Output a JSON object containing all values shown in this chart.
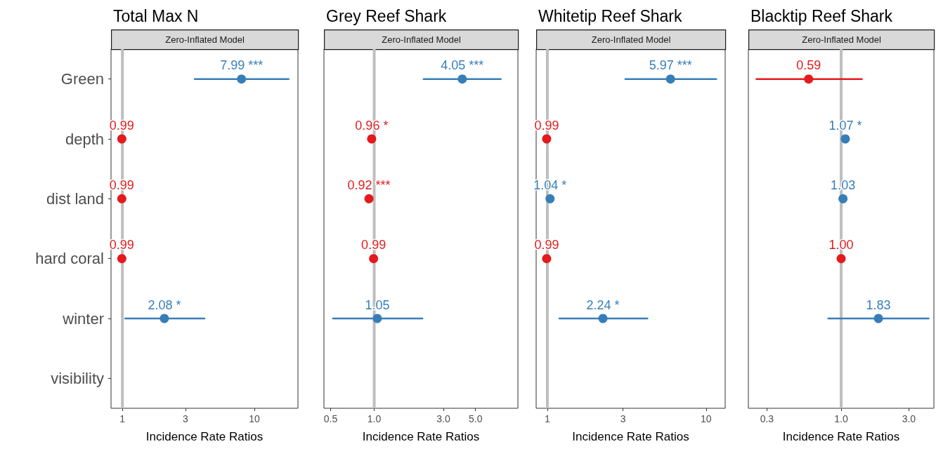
{
  "chart_data": [
    {
      "type": "scatter",
      "orientation": "horizontal",
      "title": "Total Max N",
      "subtitle": "Zero-Inflated Model",
      "xlabel": "Incidence Rate Ratios",
      "categories": [
        "Green",
        "depth",
        "dist land",
        "hard coral",
        "winter",
        "visibility"
      ],
      "values": [
        7.99,
        0.99,
        0.99,
        0.99,
        2.08,
        null
      ],
      "colors": [
        "#377eb8",
        "#e41a1c",
        "#e41a1c",
        "#e41a1c",
        "#377eb8",
        null
      ],
      "errors": [
        [
          3.53,
          18.2
        ],
        null,
        null,
        null,
        [
          1.05,
          4.19
        ],
        null
      ],
      "value_labels": [
        "7.99 ***",
        "0.99",
        "0.99",
        "0.99",
        "2.08 *",
        null
      ],
      "xlim": [
        0.82,
        21.4
      ],
      "xticks": [
        1,
        3,
        10
      ],
      "log": "x",
      "marker": "circle",
      "grid": false,
      "ref_lines": [
        {
          "axis": "x",
          "value": 1,
          "color": "#bebebe"
        }
      ]
    },
    {
      "type": "scatter",
      "orientation": "horizontal",
      "title": "Grey Reef Shark",
      "subtitle": "Zero-Inflated Model",
      "xlabel": "Incidence Rate Ratios",
      "categories": [
        null,
        null,
        null,
        null,
        null,
        null
      ],
      "values": [
        4.05,
        0.96,
        0.92,
        0.99,
        1.05,
        null
      ],
      "colors": [
        "#377eb8",
        "#e41a1c",
        "#e41a1c",
        "#e41a1c",
        "#377eb8",
        null
      ],
      "errors": [
        [
          2.19,
          7.47
        ],
        null,
        null,
        null,
        [
          0.52,
          2.15
        ],
        null
      ],
      "value_labels": [
        "4.05 ***",
        "0.96 *",
        "0.92 ***",
        "0.99",
        "1.05",
        null
      ],
      "xlim": [
        0.45,
        9.8
      ],
      "xticks": [
        0.5,
        {
          "value": 1,
          "label": "1.0"
        },
        {
          "value": 3,
          "label": "3.0"
        },
        {
          "value": 5,
          "label": "5.0"
        }
      ],
      "log": "x",
      "marker": "circle",
      "grid": false,
      "tick_labels": "x",
      "ref_lines": [
        {
          "axis": "x",
          "value": 1,
          "color": "#bebebe"
        }
      ]
    },
    {
      "type": "scatter",
      "orientation": "horizontal",
      "title": "Whitetip Reef Shark",
      "subtitle": "Zero-Inflated Model",
      "xlabel": "Incidence Rate Ratios",
      "categories": [
        null,
        null,
        null,
        null,
        null,
        null
      ],
      "values": [
        5.97,
        0.99,
        1.04,
        0.99,
        2.24,
        null
      ],
      "colors": [
        "#377eb8",
        "#e41a1c",
        "#377eb8",
        "#e41a1c",
        "#377eb8",
        null
      ],
      "errors": [
        [
          3.1,
          11.6
        ],
        null,
        null,
        null,
        [
          1.19,
          4.27
        ],
        null
      ],
      "value_labels": [
        "5.97 ***",
        "0.99",
        "1.04 *",
        "0.99",
        "2.24 *",
        null
      ],
      "xlim": [
        0.85,
        13.2
      ],
      "xticks": [
        1,
        3,
        10
      ],
      "log": "x",
      "marker": "circle",
      "grid": false,
      "tick_labels": "x",
      "ref_lines": [
        {
          "axis": "x",
          "value": 1,
          "color": "#bebebe"
        }
      ]
    },
    {
      "type": "scatter",
      "orientation": "horizontal",
      "title": "Blacktip Reef Shark",
      "subtitle": "Zero-Inflated Model",
      "xlabel": "Incidence Rate Ratios",
      "categories": [
        null,
        null,
        null,
        null,
        null,
        null
      ],
      "values": [
        0.59,
        1.07,
        1.03,
        1.0,
        1.83,
        null
      ],
      "colors": [
        "#e41a1c",
        "#377eb8",
        "#377eb8",
        "#e41a1c",
        "#377eb8",
        null
      ],
      "errors": [
        [
          0.253,
          1.4
        ],
        null,
        null,
        null,
        [
          0.81,
          4.13
        ],
        null
      ],
      "value_labels": [
        "0.59",
        "1.07 *",
        "1.03",
        "1.00",
        "1.83",
        null
      ],
      "xlim": [
        0.222,
        4.5
      ],
      "xticks": [
        0.3,
        {
          "value": 1,
          "label": "1.0"
        },
        {
          "value": 3,
          "label": "3.0"
        }
      ],
      "log": "x",
      "marker": "circle",
      "grid": false,
      "tick_labels": "x",
      "ref_lines": [
        {
          "axis": "x",
          "value": 1,
          "color": "#bebebe"
        }
      ]
    }
  ]
}
